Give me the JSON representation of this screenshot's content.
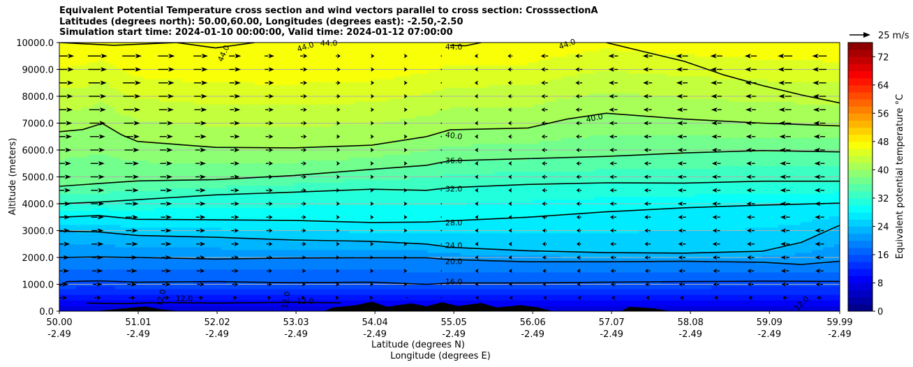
{
  "title_lines": [
    "Equivalent Potential Temperature cross section and wind vectors parallel to cross section: CrosssectionA",
    "Latitudes (degrees north): 50.00,60.00, Longitudes (degrees east): -2.50,-2.50",
    "Simulation start time: 2024-01-10 00:00:00, Valid time: 2024-01-12 07:00:00"
  ],
  "chart_data": {
    "type": "heatmap",
    "ylabel": "Altitude (meters)",
    "xlabel_lines": [
      "Latitude (degrees N)",
      "Longitude (degrees E)"
    ],
    "x_ticks": [
      {
        "lat": 50.0,
        "label1": "50.00",
        "label2": "-2.49"
      },
      {
        "lat": 51.01,
        "label1": "51.01",
        "label2": "-2.49"
      },
      {
        "lat": 52.02,
        "label1": "52.02",
        "label2": "-2.49"
      },
      {
        "lat": 53.03,
        "label1": "53.03",
        "label2": "-2.49"
      },
      {
        "lat": 54.04,
        "label1": "54.04",
        "label2": "-2.49"
      },
      {
        "lat": 55.05,
        "label1": "55.05",
        "label2": "-2.49"
      },
      {
        "lat": 56.06,
        "label1": "56.06",
        "label2": "-2.49"
      },
      {
        "lat": 57.07,
        "label1": "57.07",
        "label2": "-2.49"
      },
      {
        "lat": 58.08,
        "label1": "58.08",
        "label2": "-2.49"
      },
      {
        "lat": 59.09,
        "label1": "59.09",
        "label2": "-2.49"
      },
      {
        "lat": 59.99,
        "label1": "59.99",
        "label2": "-2.49"
      }
    ],
    "xlim": [
      50.0,
      59.99
    ],
    "y_ticks": [
      0,
      1000,
      2000,
      3000,
      4000,
      5000,
      6000,
      7000,
      8000,
      9000,
      10000
    ],
    "y_tick_labels": [
      "0.0",
      "1000.0",
      "2000.0",
      "3000.0",
      "4000.0",
      "5000.0",
      "6000.0",
      "7000.0",
      "8000.0",
      "9000.0",
      "10000.0"
    ],
    "ylim": [
      0,
      10000
    ],
    "grid": "horizontal",
    "colorbar": {
      "label": "Equivalent potential temperature $^\\circ$C",
      "label_display": "Equivalent potential temperature °C",
      "range": [
        0,
        76
      ],
      "ticks": [
        0,
        8,
        16,
        24,
        32,
        40,
        48,
        56,
        64,
        72
      ],
      "tick_labels": [
        "0",
        "8",
        "16",
        "24",
        "32",
        "40",
        "48",
        "56",
        "64",
        "72"
      ],
      "colormap": "jet"
    },
    "quiver_key": {
      "label": "25 m/s",
      "speed": 25
    },
    "contours": [
      {
        "level": 12,
        "label": "12.0",
        "points": [
          [
            50.35,
            300
          ],
          [
            50.8,
            280
          ],
          [
            51.3,
            320
          ],
          [
            52.0,
            300
          ],
          [
            53.0,
            330
          ],
          [
            53.6,
            310
          ]
        ]
      },
      {
        "level": 16,
        "label": "16.0",
        "points": [
          [
            50.0,
            950
          ],
          [
            50.1,
            1100
          ],
          [
            50.5,
            1130
          ],
          [
            51.0,
            1080
          ],
          [
            52.0,
            1100
          ],
          [
            53.0,
            1060
          ],
          [
            54.0,
            1080
          ],
          [
            54.7,
            1000
          ],
          [
            55.0,
            1050
          ],
          [
            56.0,
            1050
          ],
          [
            57.0,
            1080
          ],
          [
            58.0,
            1100
          ],
          [
            59.0,
            1120
          ],
          [
            59.99,
            1110
          ]
        ]
      },
      {
        "level": 20,
        "label": "20.0",
        "points": [
          [
            50.0,
            2000
          ],
          [
            50.5,
            2020
          ],
          [
            51.0,
            2000
          ],
          [
            52.0,
            1940
          ],
          [
            53.0,
            1980
          ],
          [
            54.0,
            1990
          ],
          [
            54.7,
            1990
          ],
          [
            55.0,
            1920
          ],
          [
            56.0,
            1840
          ],
          [
            57.0,
            1840
          ],
          [
            58.0,
            1860
          ],
          [
            59.0,
            1820
          ],
          [
            59.5,
            1740
          ],
          [
            59.99,
            1860
          ]
        ]
      },
      {
        "level": 24,
        "label": "24.0",
        "points": [
          [
            50.0,
            2980
          ],
          [
            50.5,
            2950
          ],
          [
            51.0,
            2820
          ],
          [
            52.0,
            2750
          ],
          [
            53.0,
            2650
          ],
          [
            54.0,
            2600
          ],
          [
            54.7,
            2500
          ],
          [
            55.0,
            2380
          ],
          [
            56.0,
            2250
          ],
          [
            57.0,
            2180
          ],
          [
            58.0,
            2160
          ],
          [
            59.0,
            2230
          ],
          [
            59.5,
            2560
          ],
          [
            59.99,
            3200
          ]
        ]
      },
      {
        "level": 28,
        "label": "28.0",
        "points": [
          [
            50.0,
            3500
          ],
          [
            50.5,
            3560
          ],
          [
            51.0,
            3420
          ],
          [
            52.0,
            3400
          ],
          [
            53.0,
            3380
          ],
          [
            54.0,
            3300
          ],
          [
            54.7,
            3320
          ],
          [
            55.0,
            3360
          ],
          [
            56.0,
            3500
          ],
          [
            57.0,
            3700
          ],
          [
            58.0,
            3850
          ],
          [
            59.0,
            3950
          ],
          [
            59.99,
            4020
          ]
        ]
      },
      {
        "level": 32,
        "label": "32.0",
        "points": [
          [
            50.0,
            4000
          ],
          [
            50.5,
            4060
          ],
          [
            51.0,
            4150
          ],
          [
            52.0,
            4330
          ],
          [
            53.0,
            4430
          ],
          [
            54.0,
            4540
          ],
          [
            54.7,
            4500
          ],
          [
            55.0,
            4600
          ],
          [
            56.0,
            4720
          ],
          [
            57.0,
            4780
          ],
          [
            58.0,
            4770
          ],
          [
            59.0,
            4840
          ],
          [
            59.99,
            4840
          ]
        ]
      },
      {
        "level": 36,
        "label": "36.0",
        "points": [
          [
            50.0,
            4650
          ],
          [
            50.5,
            4750
          ],
          [
            51.0,
            4850
          ],
          [
            52.0,
            4900
          ],
          [
            53.0,
            5050
          ],
          [
            54.0,
            5280
          ],
          [
            54.7,
            5430
          ],
          [
            55.0,
            5600
          ],
          [
            56.0,
            5680
          ],
          [
            57.0,
            5760
          ],
          [
            58.0,
            5890
          ],
          [
            59.0,
            5980
          ],
          [
            59.99,
            5930
          ]
        ]
      },
      {
        "level": 40,
        "label": "40.0",
        "points": [
          [
            50.0,
            6680
          ],
          [
            50.3,
            6760
          ],
          [
            50.55,
            6990
          ],
          [
            50.8,
            6560
          ],
          [
            51.0,
            6320
          ],
          [
            52.0,
            6100
          ],
          [
            53.0,
            6080
          ],
          [
            54.0,
            6180
          ],
          [
            54.7,
            6500
          ],
          [
            55.0,
            6750
          ],
          [
            56.0,
            6820
          ],
          [
            56.5,
            7150
          ],
          [
            57.0,
            7370
          ],
          [
            58.0,
            7150
          ],
          [
            59.0,
            7000
          ],
          [
            59.99,
            6900
          ]
        ]
      },
      {
        "level": 44,
        "label": "44.0",
        "points": [
          [
            50.0,
            10000
          ],
          [
            50.7,
            9900
          ],
          [
            51.5,
            10000
          ],
          [
            52.0,
            9800
          ],
          [
            52.5,
            10000
          ]
        ]
      },
      {
        "level": 44,
        "label": "44.0",
        "points": [
          [
            55.0,
            9900
          ],
          [
            55.2,
            9880
          ],
          [
            55.4,
            10000
          ]
        ]
      },
      {
        "level": 44,
        "label": "44.0",
        "points": [
          [
            57.0,
            10000
          ],
          [
            57.5,
            9650
          ],
          [
            58.0,
            9300
          ],
          [
            58.5,
            8800
          ],
          [
            59.0,
            8400
          ],
          [
            59.5,
            8050
          ],
          [
            59.99,
            7750
          ]
        ]
      }
    ],
    "contour_labels": [
      {
        "text": "44.0",
        "lat": 52.1,
        "alt": 9600,
        "rot": -65
      },
      {
        "text": "44.0",
        "lat": 53.15,
        "alt": 9850,
        "rot": -18
      },
      {
        "text": "44.0",
        "lat": 53.45,
        "alt": 9990,
        "rot": 0
      },
      {
        "text": "44.0",
        "lat": 55.05,
        "alt": 9850,
        "rot": 0
      },
      {
        "text": "44.0",
        "lat": 56.5,
        "alt": 9950,
        "rot": -20
      },
      {
        "text": "40.0",
        "lat": 55.05,
        "alt": 6540,
        "rot": 8
      },
      {
        "text": "40.0",
        "lat": 56.85,
        "alt": 7200,
        "rot": -12
      },
      {
        "text": "36.0",
        "lat": 55.05,
        "alt": 5610,
        "rot": 0
      },
      {
        "text": "32.0",
        "lat": 55.05,
        "alt": 4560,
        "rot": 0
      },
      {
        "text": "28.0",
        "lat": 55.05,
        "alt": 3300,
        "rot": 0
      },
      {
        "text": "24.0",
        "lat": 55.05,
        "alt": 2450,
        "rot": 0
      },
      {
        "text": "20.0",
        "lat": 55.05,
        "alt": 1860,
        "rot": 0
      },
      {
        "text": "16.0",
        "lat": 55.05,
        "alt": 1100,
        "rot": 0
      },
      {
        "text": "12.0",
        "lat": 51.3,
        "alt": 500,
        "rot": -75
      },
      {
        "text": "12.0",
        "lat": 51.6,
        "alt": 480,
        "rot": 0
      },
      {
        "text": "12.0",
        "lat": 52.9,
        "alt": 420,
        "rot": -80
      },
      {
        "text": "12.0",
        "lat": 53.15,
        "alt": 380,
        "rot": 0
      },
      {
        "text": "12.0",
        "lat": 59.5,
        "alt": 300,
        "rot": -45
      }
    ],
    "terrain": [
      [
        53.4,
        0
      ],
      [
        53.5,
        120
      ],
      [
        53.8,
        210
      ],
      [
        54.0,
        340
      ],
      [
        54.2,
        150
      ],
      [
        54.5,
        280
      ],
      [
        54.7,
        170
      ],
      [
        54.9,
        320
      ],
      [
        55.1,
        180
      ],
      [
        55.4,
        290
      ],
      [
        55.6,
        120
      ],
      [
        55.9,
        210
      ],
      [
        56.1,
        140
      ],
      [
        56.3,
        0
      ],
      [
        57.2,
        0
      ],
      [
        57.3,
        150
      ],
      [
        57.6,
        90
      ],
      [
        57.8,
        0
      ]
    ],
    "terrain_left": [
      [
        50.5,
        0
      ],
      [
        50.8,
        80
      ],
      [
        51.1,
        160
      ],
      [
        51.3,
        60
      ],
      [
        51.5,
        0
      ]
    ],
    "wind": {
      "columns": [
        50.05,
        50.49,
        50.93,
        51.37,
        51.81,
        52.25,
        52.69,
        53.13,
        53.57,
        54.01,
        54.45,
        54.89,
        55.33,
        55.77,
        56.21,
        56.65,
        57.09,
        57.53,
        57.97,
        58.41,
        58.85,
        59.29,
        59.73
      ],
      "levels": [
        500,
        1000,
        1500,
        2000,
        2500,
        3000,
        3500,
        4000,
        4500,
        5000,
        5500,
        6000,
        6500,
        7000,
        7500,
        8000,
        8500,
        9000,
        9500
      ],
      "u_west": [
        9,
        8,
        8,
        7,
        6,
        5,
        4,
        3,
        2,
        1.5,
        0.5,
        0,
        -1,
        -2,
        -3,
        -3,
        -4,
        -4,
        -5,
        -5,
        -5,
        -6,
        -6
      ],
      "level_scale": [
        0.5,
        0.7,
        0.8,
        0.85,
        0.9,
        0.9,
        0.95,
        1,
        1,
        1.05,
        1.05,
        1.1,
        1.15,
        1.2,
        1.25,
        1.3,
        1.35,
        1.4,
        1.45
      ]
    }
  }
}
